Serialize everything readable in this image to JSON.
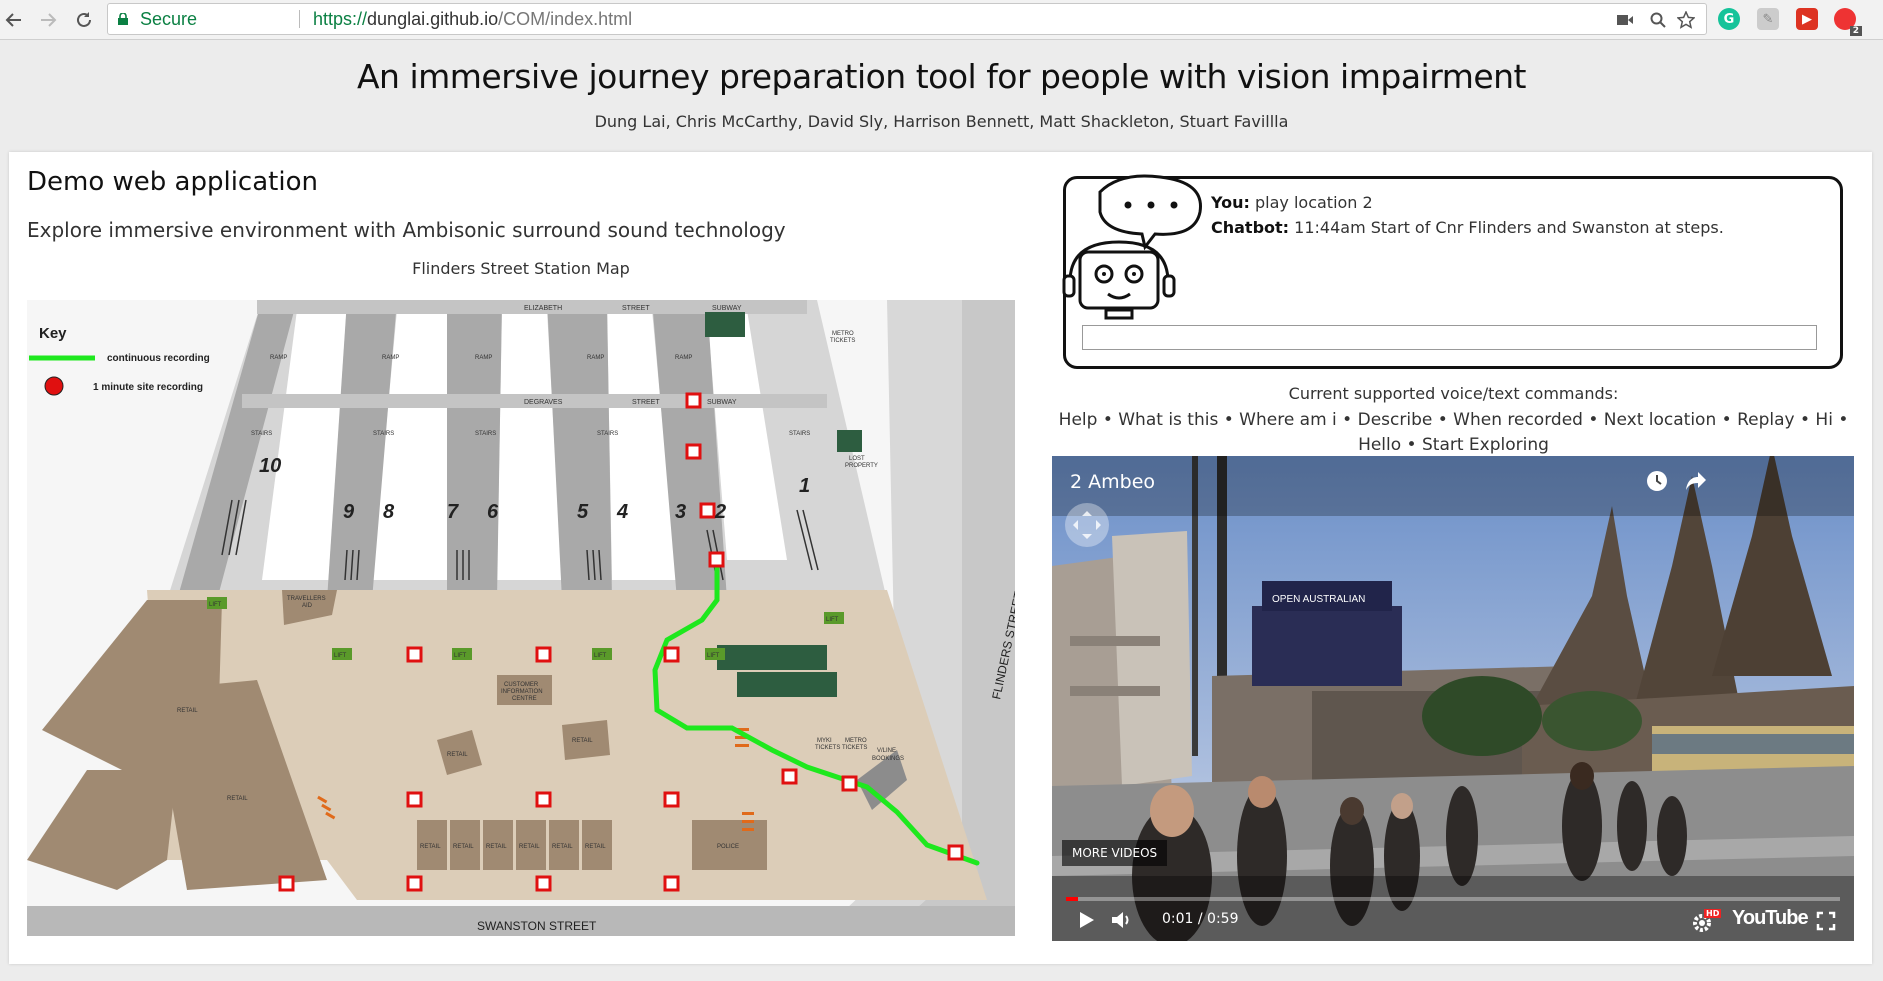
{
  "browser": {
    "secure_label": "Secure",
    "url_scheme": "https://",
    "url_host": "dunglai.github.io",
    "url_path": "/COM/index.html",
    "ext_badge": "2"
  },
  "header": {
    "title": "An immersive journey preparation tool for people with vision impairment",
    "authors": "Dung Lai, Chris McCarthy, David Sly, Harrison Bennett, Matt Shackleton, Stuart Favillla"
  },
  "demo": {
    "title": "Demo web application",
    "subtitle": "Explore immersive environment with Ambisonic surround sound technology",
    "map_caption": "Flinders Street Station Map"
  },
  "map": {
    "key_title": "Key",
    "key_continuous": "continuous recording",
    "key_minute": "1 minute site recording",
    "street_top1": "ELIZABETH",
    "street_top2": "STREET",
    "street_top3": "SUBWAY",
    "street_mid1": "DEGRAVES",
    "street_mid2": "STREET",
    "street_mid3": "SUBWAY",
    "street_bottom": "SWANSTON STREET",
    "street_right": "FLINDERS STREET",
    "platforms": [
      "10",
      "9",
      "8",
      "7",
      "6",
      "5",
      "4",
      "3",
      "2",
      "1"
    ],
    "labels": {
      "ramp": "RAMP",
      "stairs": "STAIRS",
      "lift": "LIFT",
      "retail": "RETAIL",
      "police": "POLICE",
      "customer": "CUSTOMER",
      "information": "INFORMATION",
      "centre": "CENTRE",
      "travellers": "TRAVELLERS",
      "aid": "AID",
      "lost": "LOST",
      "property": "PROPERTY",
      "metro": "METRO",
      "tickets": "TICKETS",
      "myki": "MYKI",
      "v_line": "V/LINE",
      "bookings": "BOOKINGS"
    },
    "colors": {
      "route": "#1ee81e",
      "marker": "#e01010",
      "concourse": "#d9cbb6",
      "platform": "#b4b4b4",
      "retail": "#a08a72"
    }
  },
  "chat": {
    "you_label": "You:",
    "you_text": " play location 2",
    "bot_label": "Chatbot:",
    "bot_text": " 11:44am Start of Cnr Flinders and Swanston at steps.",
    "input_value": ""
  },
  "commands": {
    "title": "Current supported voice/text commands:",
    "list": "Help • What is this • Where am i • Describe • When recorded • Next location • Replay • Hi • Hello • Start Exploring"
  },
  "video": {
    "title": "2 Ambeo",
    "more_videos": "MORE VIDEOS",
    "time": "0:01 / 0:59",
    "brand": "YouTube",
    "hd_badge": "HD",
    "sign": "OPEN AUSTRALIAN",
    "progress": 0.016
  }
}
